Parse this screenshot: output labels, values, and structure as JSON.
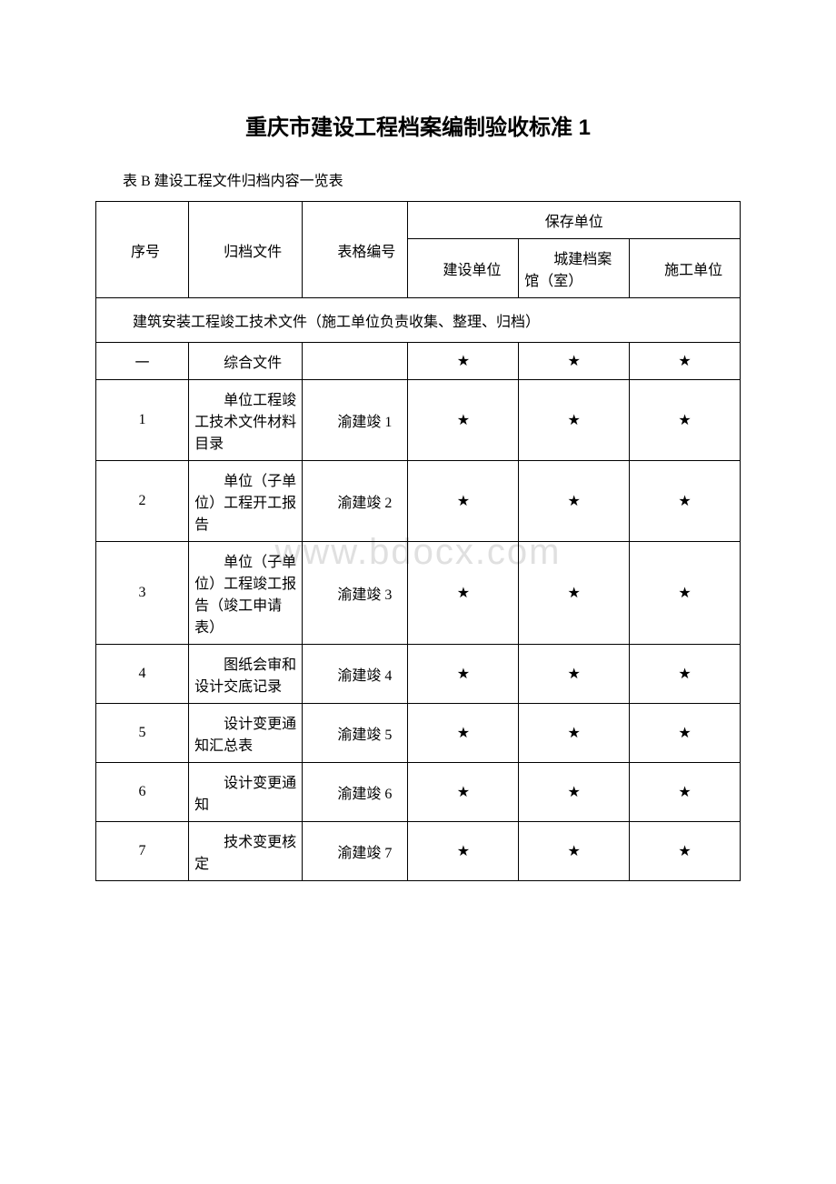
{
  "document": {
    "title": "重庆市建设工程档案编制验收标准 1",
    "subtitle": "表 B 建设工程文件归档内容一览表",
    "watermark": "www.bdocx.com"
  },
  "table": {
    "header": {
      "seq": "序号",
      "file": "归档文件",
      "form": "表格编号",
      "storage_unit": "保存单位",
      "construction_unit": "建设单位",
      "archive": "城建档案馆（室）",
      "construction_co": "施工单位"
    },
    "section_header": "建筑安装工程竣工技术文件（施工单位负责收集、整理、归档）",
    "star": "★",
    "rows": [
      {
        "seq": "一",
        "file": "综合文件",
        "form": "",
        "c1": "★",
        "c2": "★",
        "c3": "★"
      },
      {
        "seq": "1",
        "file": "单位工程竣工技术文件材料目录",
        "form": "渝建竣 1",
        "c1": "★",
        "c2": "★",
        "c3": "★"
      },
      {
        "seq": "2",
        "file": "单位（子单位）工程开工报告",
        "form": "渝建竣 2",
        "c1": "★",
        "c2": "★",
        "c3": "★"
      },
      {
        "seq": "3",
        "file": "单位（子单位）工程竣工报告（竣工申请表）",
        "form": "渝建竣 3",
        "c1": "★",
        "c2": "★",
        "c3": "★"
      },
      {
        "seq": "4",
        "file": "图纸会审和设计交底记录",
        "form": "渝建竣 4",
        "c1": "★",
        "c2": "★",
        "c3": "★"
      },
      {
        "seq": "5",
        "file": "设计变更通知汇总表",
        "form": "渝建竣 5",
        "c1": "★",
        "c2": "★",
        "c3": "★"
      },
      {
        "seq": "6",
        "file": "设计变更通知",
        "form": "渝建竣 6",
        "c1": "★",
        "c2": "★",
        "c3": "★"
      },
      {
        "seq": "7",
        "file": "技术变更核定",
        "form": "渝建竣 7",
        "c1": "★",
        "c2": "★",
        "c3": "★"
      }
    ]
  }
}
